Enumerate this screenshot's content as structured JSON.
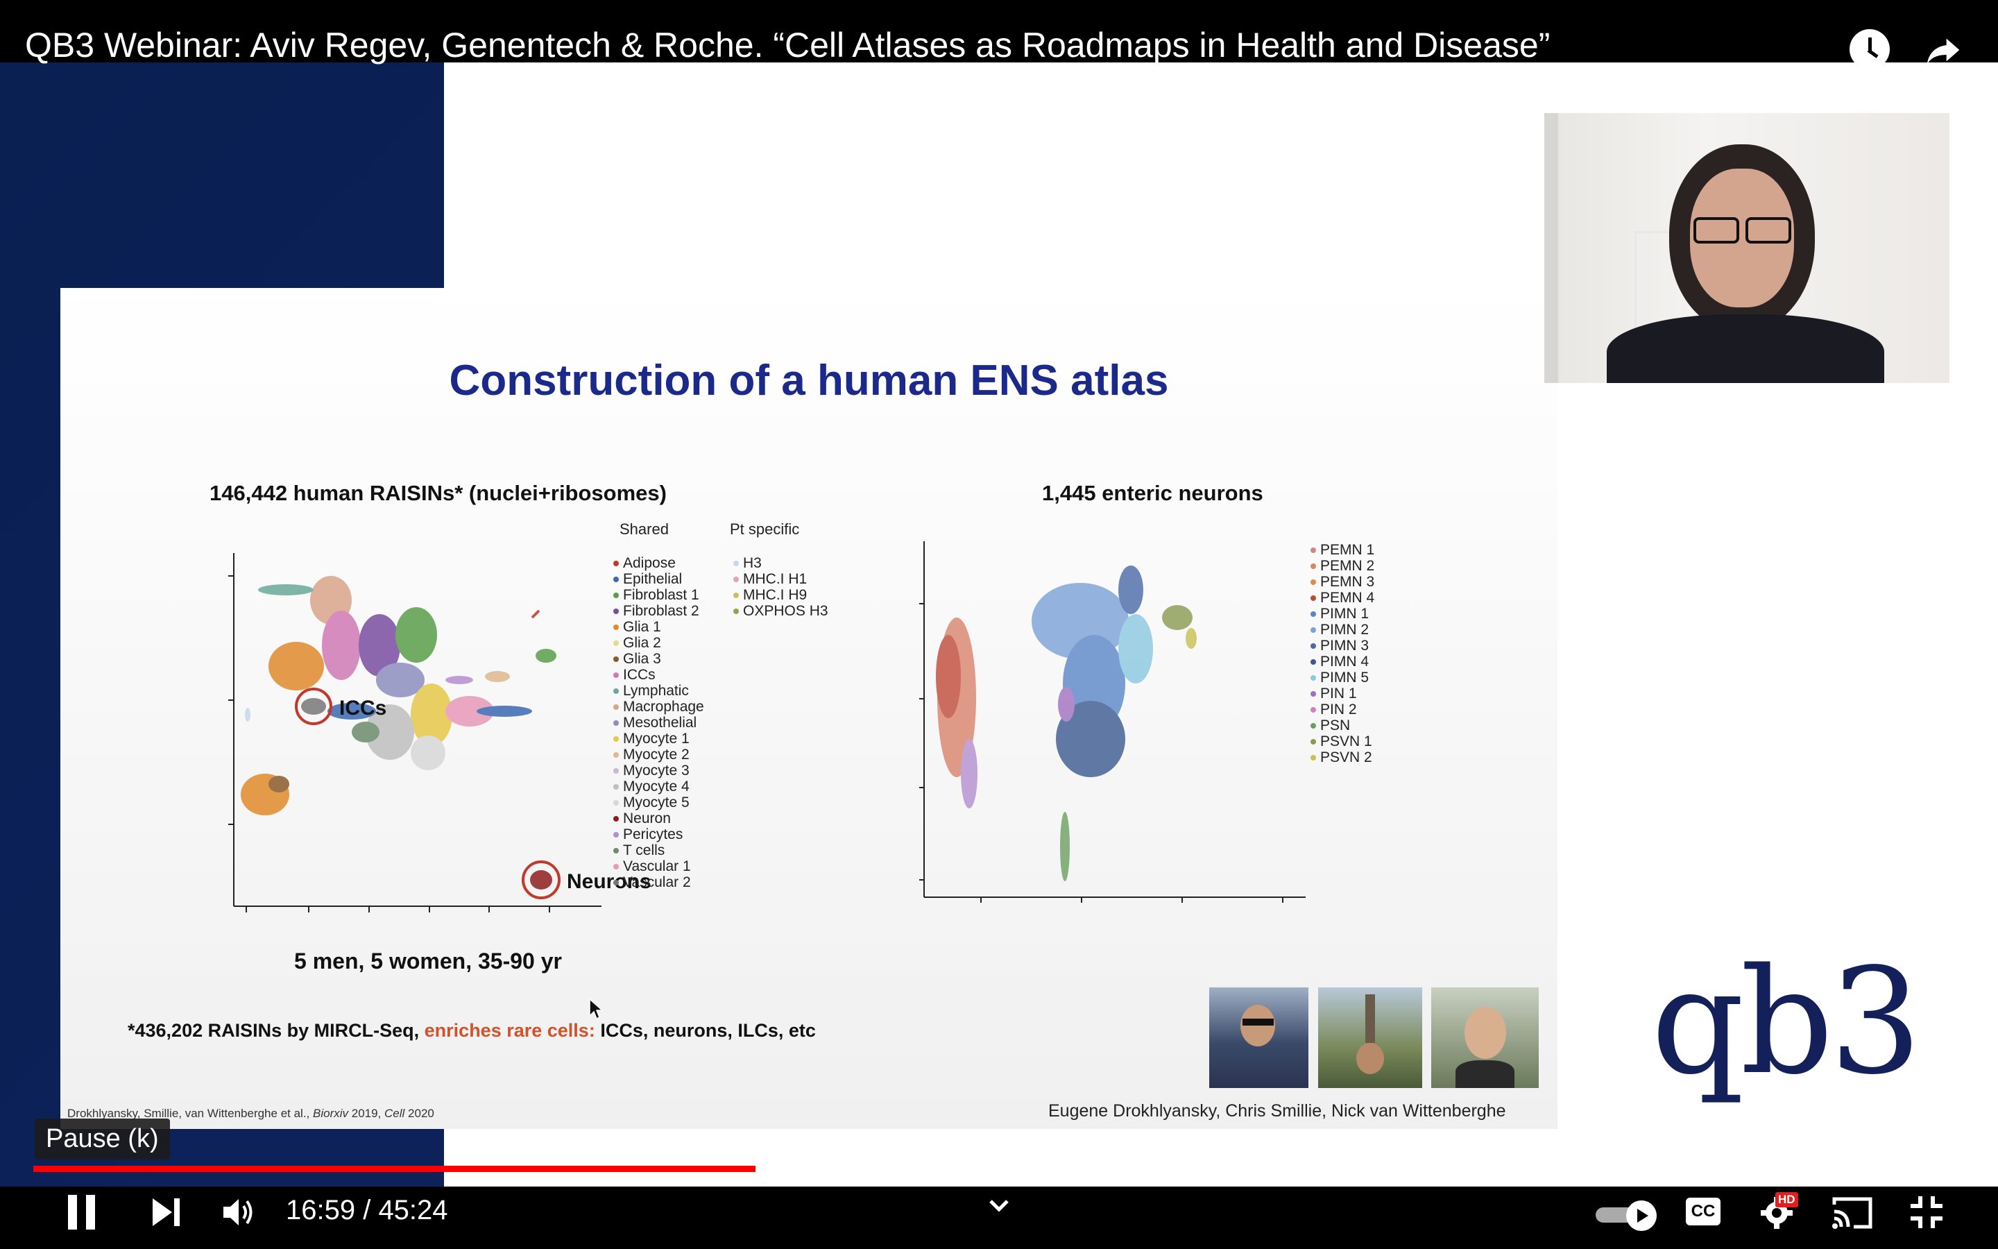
{
  "video": {
    "title": "QB3 Webinar: Aviv Regev, Genentech & Roche. “Cell Atlases as Roadmaps in Health and Disease”"
  },
  "slide": {
    "title": "Construction of a human ENS atlas",
    "left_panel_title": "146,442 human RAISINs* (nuclei+ribosomes)",
    "right_panel_title": "1,445 enteric neurons",
    "legend_shared_header": "Shared",
    "legend_pt_header": "Pt specific",
    "legend_shared": [
      {
        "label": "Adipose",
        "color": "#c0392b"
      },
      {
        "label": "Epithelial",
        "color": "#3b6ab3"
      },
      {
        "label": "Fibroblast 1",
        "color": "#5a9e4b"
      },
      {
        "label": "Fibroblast 2",
        "color": "#7a4ea0"
      },
      {
        "label": "Glia 1",
        "color": "#e08a2c"
      },
      {
        "label": "Glia 2",
        "color": "#e8d98a"
      },
      {
        "label": "Glia 3",
        "color": "#8b5a2b"
      },
      {
        "label": "ICCs",
        "color": "#d07ab5"
      },
      {
        "label": "Lymphatic",
        "color": "#6aaa9c"
      },
      {
        "label": "Macrophage",
        "color": "#d9a58a"
      },
      {
        "label": "Mesothelial",
        "color": "#8c8fbf"
      },
      {
        "label": "Myocyte 1",
        "color": "#e6c84a"
      },
      {
        "label": "Myocyte 2",
        "color": "#e0b890"
      },
      {
        "label": "Myocyte 3",
        "color": "#c9b7d8"
      },
      {
        "label": "Myocyte 4",
        "color": "#bfbfbf"
      },
      {
        "label": "Myocyte 5",
        "color": "#d8d8d8"
      },
      {
        "label": "Neuron",
        "color": "#8e1f1f"
      },
      {
        "label": "Pericytes",
        "color": "#b48fd0"
      },
      {
        "label": "T cells",
        "color": "#6c8c6c"
      },
      {
        "label": "Vascular 1",
        "color": "#e89ab8"
      },
      {
        "label": "Vascular 2",
        "color": "#777777"
      }
    ],
    "legend_pt": [
      {
        "label": "H3",
        "color": "#c8d8ea"
      },
      {
        "label": "MHC.I H1",
        "color": "#e6a0c0"
      },
      {
        "label": "MHC.I H9",
        "color": "#c9c060"
      },
      {
        "label": "OXPHOS H3",
        "color": "#8aa850"
      }
    ],
    "legend_neurons": [
      {
        "label": "PEMN 1",
        "color": "#c98a8a"
      },
      {
        "label": "PEMN 2",
        "color": "#d9846b"
      },
      {
        "label": "PEMN 3",
        "color": "#e08a4a"
      },
      {
        "label": "PEMN 4",
        "color": "#c04a3a"
      },
      {
        "label": "PIMN 1",
        "color": "#5a86c8"
      },
      {
        "label": "PIMN 2",
        "color": "#7aa2d8"
      },
      {
        "label": "PIMN 3",
        "color": "#4a6aa8"
      },
      {
        "label": "PIMN 4",
        "color": "#3a5a90"
      },
      {
        "label": "PIMN 5",
        "color": "#8ac8e0"
      },
      {
        "label": "PIN 1",
        "color": "#a070c0"
      },
      {
        "label": "PIN 2",
        "color": "#d080c0"
      },
      {
        "label": "PSN",
        "color": "#6aa060"
      },
      {
        "label": "PSVN 1",
        "color": "#8a9a50"
      },
      {
        "label": "PSVN 2",
        "color": "#c8c050"
      }
    ],
    "label_iccs": "ICCs",
    "label_neurons": "Neurons",
    "demographics": "5 men, 5 women, 35-90 yr",
    "footnote_prefix": "*436,202 RAISINs by MIRCL-Seq,",
    "footnote_highlight": "enriches rare cells:",
    "footnote_suffix": "ICCs, neurons, ILCs, etc",
    "citation_authors": "Drokhlyansky, Smillie, van Wittenberghe et al., ",
    "citation_journal1": "Biorxiv",
    "citation_year1": " 2019, ",
    "citation_journal2": "Cell",
    "citation_year2": " 2020",
    "credits": "Eugene Drokhlyansky, Chris Smillie, Nick van Wittenberghe",
    "highlight_color": "#d0532a"
  },
  "channel_logo": "qb3",
  "player": {
    "tooltip": "Pause (k)",
    "time_display": "16:59 / 45:24",
    "progress": 0.374,
    "buffered": 0.404,
    "hd_badge": "HD",
    "cc_label": "CC",
    "accent": "#ff0000"
  }
}
